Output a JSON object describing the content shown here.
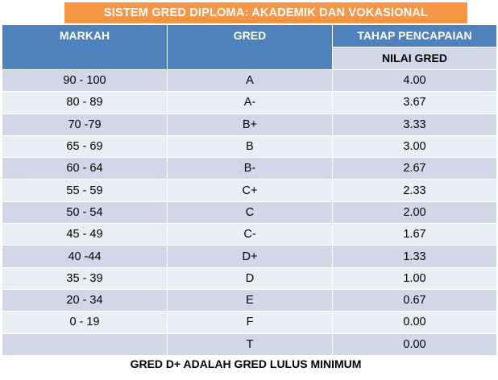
{
  "title": "SISTEM GRED DIPLOMA: AKADEMIK DAN VOKASIONAL",
  "headers": {
    "markah": "MARKAH",
    "gred": "GRED",
    "tahap": "TAHAP PENCAPAIAN",
    "nilai": "NILAI GRED"
  },
  "rows": [
    {
      "markah": "90 - 100",
      "gred": "A",
      "nilai": "4.00"
    },
    {
      "markah": "80 - 89",
      "gred": "A-",
      "nilai": "3.67"
    },
    {
      "markah": "70 -79",
      "gred": "B+",
      "nilai": "3.33"
    },
    {
      "markah": "65 - 69",
      "gred": "B",
      "nilai": "3.00"
    },
    {
      "markah": "60 - 64",
      "gred": "B-",
      "nilai": "2.67"
    },
    {
      "markah": "55 - 59",
      "gred": "C+",
      "nilai": "2.33"
    },
    {
      "markah": "50 - 54",
      "gred": "C",
      "nilai": "2.00"
    },
    {
      "markah": "45 - 49",
      "gred": "C-",
      "nilai": "1.67"
    },
    {
      "markah": "40 -44",
      "gred": "D+",
      "nilai": "1.33"
    },
    {
      "markah": "35 - 39",
      "gred": "D",
      "nilai": "1.00"
    },
    {
      "markah": "20 - 34",
      "gred": "E",
      "nilai": "0.67"
    },
    {
      "markah": "0 - 19",
      "gred": "F",
      "nilai": "0.00"
    },
    {
      "markah": "",
      "gred": "T",
      "nilai": "0.00"
    }
  ],
  "footer": "GRED D+ ADALAH  GRED LULUS MINIMUM",
  "colors": {
    "title_bg": "#f79646",
    "header_bg": "#4f81bd",
    "row_dark": "#d0d8e8",
    "row_light": "#e9edf4"
  }
}
